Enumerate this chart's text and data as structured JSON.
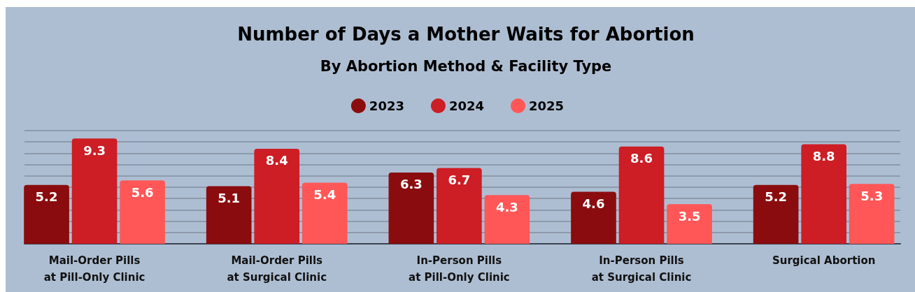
{
  "chart_data": {
    "type": "bar",
    "title": "Number of Days a Mother Waits for Abortion",
    "subtitle": "By Abortion Method & Facility Type",
    "categories": [
      "Mail-Order Pills\nat Pill-Only Clinic",
      "Mail-Order Pills\nat Surgical Clinic",
      "In-Person Pills\nat Pill-Only Clinic",
      "In-Person Pills\nat Surgical Clinic",
      "Surgical Abortion"
    ],
    "series": [
      {
        "name": "2023",
        "color": "#8b0c0e",
        "values": [
          5.2,
          5.1,
          6.3,
          4.6,
          5.2
        ]
      },
      {
        "name": "2024",
        "color": "#cd1d25",
        "values": [
          9.3,
          8.4,
          6.7,
          8.6,
          8.8
        ]
      },
      {
        "name": "2025",
        "color": "#ff5757",
        "values": [
          5.6,
          5.4,
          4.3,
          3.5,
          5.3
        ]
      }
    ],
    "ylim": [
      0,
      10
    ],
    "yticks": [
      {
        "value": 0,
        "label": null
      },
      {
        "value": 1,
        "label": null
      },
      {
        "value": 2,
        "label": null
      },
      {
        "value": 3,
        "label": null
      },
      {
        "value": 4,
        "label": null
      },
      {
        "value": 5,
        "label": null
      },
      {
        "value": 6,
        "label": null
      },
      {
        "value": 7,
        "label": null
      },
      {
        "value": 8,
        "label": null
      },
      {
        "value": 9,
        "label": null
      },
      {
        "value": 10,
        "label": null
      }
    ],
    "grid": "y",
    "legend": "top",
    "tick_labels": "x",
    "data_labels": true
  }
}
